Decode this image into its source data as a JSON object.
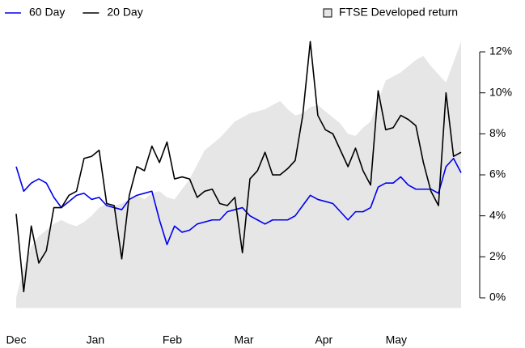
{
  "chart_data": {
    "type": "line",
    "xlim": [
      0,
      59
    ],
    "xticks": [
      {
        "value": 0,
        "label": "Dec"
      },
      {
        "value": 10.5,
        "label": "Jan"
      },
      {
        "value": 20.7,
        "label": "Feb"
      },
      {
        "value": 30.2,
        "label": "Mar"
      },
      {
        "value": 40.8,
        "label": "Apr"
      },
      {
        "value": 50.4,
        "label": "May"
      }
    ],
    "ylim": [
      -0.5,
      12.6
    ],
    "yticks": [
      {
        "value": 0,
        "label": "0%"
      },
      {
        "value": 2,
        "label": "2%"
      },
      {
        "value": 4,
        "label": "4%"
      },
      {
        "value": 6,
        "label": "6%"
      },
      {
        "value": 8,
        "label": "8%"
      },
      {
        "value": 10,
        "label": "10%"
      },
      {
        "value": 12,
        "label": "12%"
      }
    ],
    "series": [
      {
        "name": "FTSE Developed return",
        "style": "area",
        "color": "#e6e6e6",
        "values": [
          0.0,
          1.5,
          2.5,
          3.0,
          3.3,
          3.6,
          3.8,
          3.6,
          3.5,
          3.7,
          4.0,
          4.4,
          4.6,
          4.5,
          4.6,
          4.8,
          5.0,
          4.8,
          5.1,
          5.2,
          4.9,
          4.8,
          5.3,
          5.8,
          6.5,
          7.2,
          7.5,
          7.8,
          8.2,
          8.6,
          8.8,
          9.0,
          9.1,
          9.2,
          9.4,
          9.6,
          9.2,
          8.9,
          9.0,
          9.3,
          9.4,
          9.1,
          8.8,
          8.5,
          8.0,
          7.9,
          8.3,
          8.6,
          9.6,
          10.6,
          10.8,
          11.0,
          11.3,
          11.6,
          11.8,
          11.3,
          10.9,
          10.5,
          11.5,
          12.5
        ]
      },
      {
        "name": "60 Day",
        "style": "line",
        "color": "#0000ee",
        "values": [
          6.4,
          5.2,
          5.6,
          5.8,
          5.6,
          4.9,
          4.4,
          4.7,
          5.0,
          5.1,
          4.8,
          4.9,
          4.5,
          4.4,
          4.3,
          4.8,
          5.0,
          5.1,
          5.2,
          3.8,
          2.6,
          3.5,
          3.2,
          3.3,
          3.6,
          3.7,
          3.8,
          3.8,
          4.2,
          4.3,
          4.4,
          4.0,
          3.8,
          3.6,
          3.8,
          3.8,
          3.8,
          4.0,
          4.5,
          5.0,
          4.8,
          4.7,
          4.6,
          4.2,
          3.8,
          4.2,
          4.2,
          4.4,
          5.4,
          5.6,
          5.6,
          5.9,
          5.5,
          5.3,
          5.3,
          5.3,
          5.1,
          6.4,
          6.8,
          6.1
        ]
      },
      {
        "name": "20 Day",
        "style": "line",
        "color": "#000000",
        "values": [
          4.1,
          0.3,
          3.5,
          1.7,
          2.3,
          4.4,
          4.4,
          5.0,
          5.2,
          6.8,
          6.9,
          7.2,
          4.6,
          4.5,
          1.9,
          5.0,
          6.4,
          6.2,
          7.4,
          6.6,
          7.6,
          5.8,
          5.9,
          5.8,
          4.9,
          5.2,
          5.3,
          4.6,
          4.5,
          4.9,
          2.2,
          5.8,
          6.2,
          7.1,
          6.0,
          6.0,
          6.3,
          6.7,
          8.9,
          12.5,
          8.9,
          8.2,
          8.0,
          7.2,
          6.4,
          7.3,
          6.2,
          5.5,
          10.1,
          8.2,
          8.3,
          8.9,
          8.7,
          8.4,
          6.6,
          5.2,
          4.5,
          10.0,
          6.9,
          7.1
        ]
      }
    ]
  }
}
